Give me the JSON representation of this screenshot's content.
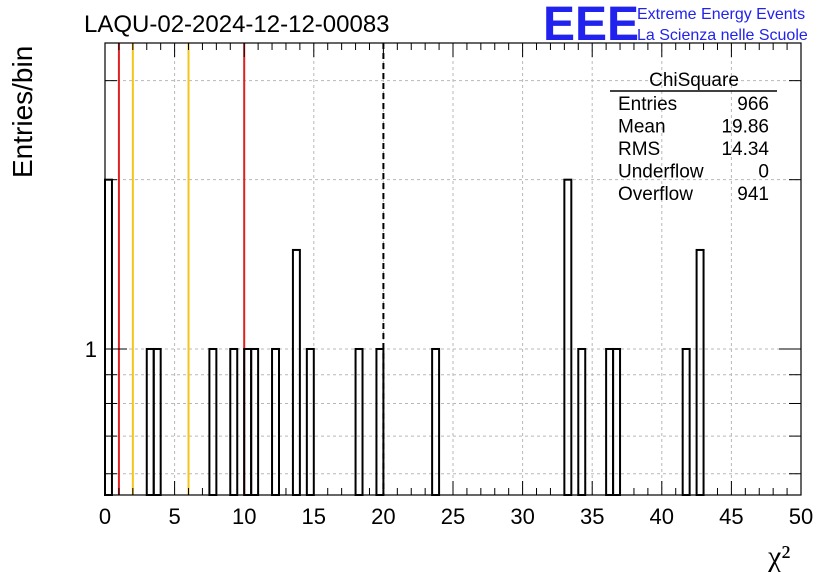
{
  "chart_data": {
    "type": "bar",
    "title": "LAQU-02-2024-12-12-00083",
    "ylabel": "Entries/bin",
    "xlabel": "χ²",
    "xlim": [
      0,
      50
    ],
    "ylim": [
      0.55,
      3.5
    ],
    "y_scale": "log",
    "grid": true,
    "bin_width": 0.5,
    "x_ticks": [
      "0",
      "5",
      "10",
      "15",
      "20",
      "25",
      "30",
      "35",
      "40",
      "45",
      "50"
    ],
    "y_tick_labels": [
      {
        "value": 1,
        "label": "1"
      }
    ],
    "bins": [
      {
        "x": 0,
        "value": 2
      },
      {
        "x": 3,
        "value": 1
      },
      {
        "x": 3.5,
        "value": 1
      },
      {
        "x": 7.5,
        "value": 1
      },
      {
        "x": 9,
        "value": 1
      },
      {
        "x": 10,
        "value": 1
      },
      {
        "x": 10.5,
        "value": 1
      },
      {
        "x": 12,
        "value": 1
      },
      {
        "x": 13.5,
        "value": 1.5
      },
      {
        "x": 14.5,
        "value": 1
      },
      {
        "x": 18,
        "value": 1
      },
      {
        "x": 19.5,
        "value": 1
      },
      {
        "x": 23.5,
        "value": 1
      },
      {
        "x": 33,
        "value": 2
      },
      {
        "x": 34,
        "value": 1
      },
      {
        "x": 36,
        "value": 1
      },
      {
        "x": 36.5,
        "value": 1
      },
      {
        "x": 41.5,
        "value": 1
      },
      {
        "x": 42.5,
        "value": 1.5
      }
    ],
    "vertical_lines": [
      {
        "x": 1,
        "color": "#dd2222",
        "style": "solid"
      },
      {
        "x": 2,
        "color": "#f5c518",
        "style": "solid"
      },
      {
        "x": 6,
        "color": "#f5c518",
        "style": "solid"
      },
      {
        "x": 10,
        "color": "#dd2222",
        "style": "solid"
      },
      {
        "x": 20,
        "color": "#000000",
        "style": "dashed"
      }
    ],
    "stats_box": {
      "title": "ChiSquare",
      "rows": [
        {
          "label": "Entries",
          "value": "966"
        },
        {
          "label": "Mean",
          "value": "19.86"
        },
        {
          "label": "RMS",
          "value": "14.34"
        },
        {
          "label": "Underflow",
          "value": "0"
        },
        {
          "label": "Overflow",
          "value": "941"
        }
      ]
    }
  },
  "logo": {
    "text": "EEE",
    "line1": "Extreme Energy Events",
    "line2": "La Scienza nelle Scuole",
    "color": "#2222ee"
  }
}
